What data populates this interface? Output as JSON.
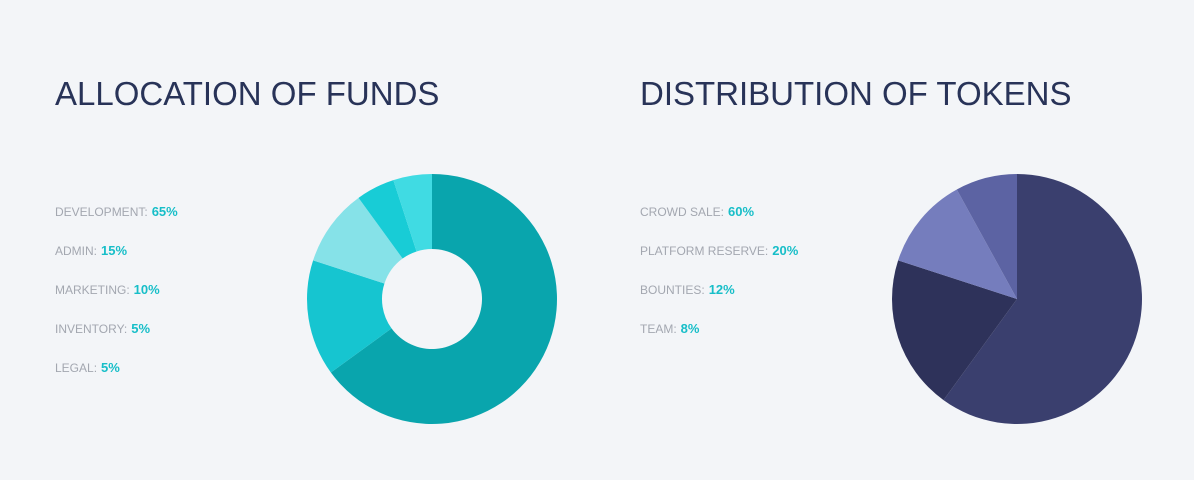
{
  "chart_data": [
    {
      "type": "donut",
      "title": "ALLOCATION OF FUNDS",
      "categories": [
        "DEVELOPMENT:",
        "ADMIN:",
        "MARKETING:",
        "INVENTORY:",
        "LEGAL:"
      ],
      "values": [
        65,
        15,
        10,
        5,
        5
      ],
      "value_labels": [
        "65%",
        "15%",
        "10%",
        "5%",
        "5%"
      ],
      "colors": [
        "#09a5ad",
        "#16c5d0",
        "#86e2e8",
        "#18ccd6",
        "#40dbe3"
      ]
    },
    {
      "type": "pie",
      "title": "DISTRIBUTION OF TOKENS",
      "categories": [
        "CROWD SALE:",
        "PLATFORM RESERVE:",
        "BOUNTIES:",
        "TEAM:"
      ],
      "values": [
        60,
        20,
        12,
        8
      ],
      "value_labels": [
        "60%",
        "20%",
        "12%",
        "8%"
      ],
      "colors": [
        "#3a3f6e",
        "#2e325a",
        "#757dbd",
        "#5c63a3"
      ]
    }
  ]
}
